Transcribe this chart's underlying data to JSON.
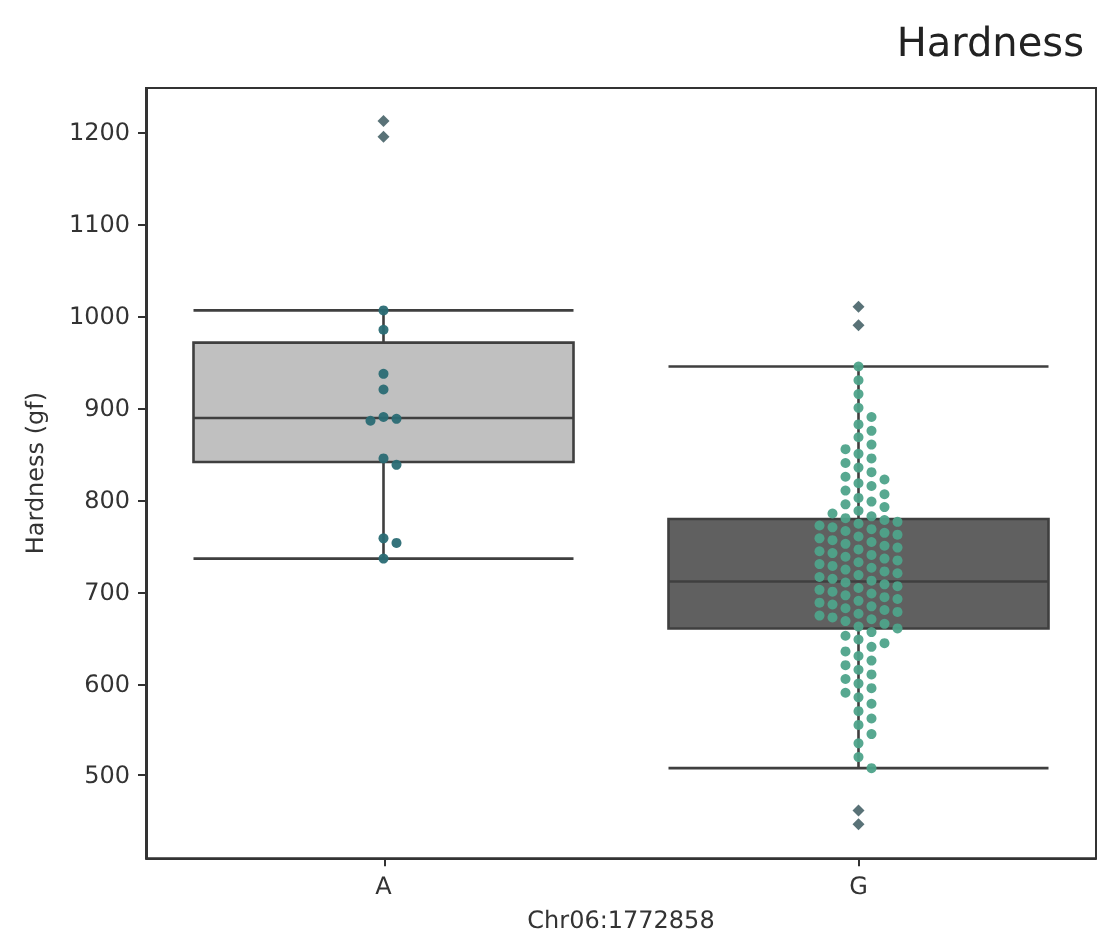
{
  "chart_data": {
    "type": "box",
    "title": "Hardness",
    "xlabel": "Chr06:1772858",
    "ylabel": "Hardness (gf)",
    "categories": [
      "A",
      "G"
    ],
    "ylim": [
      410,
      1248
    ],
    "yticks": [
      500,
      600,
      700,
      800,
      900,
      1000,
      1100,
      1200
    ],
    "grid": false,
    "series": [
      {
        "colors": [
          "#c0c0c0",
          "#606060"
        ],
        "marker": "diamond",
        "boxes": [
          {
            "low": 736,
            "q1": 841,
            "median": 889,
            "q3": 971,
            "high": 1006,
            "outliers": [
              1212,
              1195
            ]
          },
          {
            "low": 508,
            "q1": 660,
            "median": 711,
            "q3": 779,
            "high": 945,
            "outliers": [
              1010,
              990,
              462,
              447
            ]
          }
        ]
      },
      {
        "type": "scatter",
        "color": "#2a6b74",
        "marker": "circle",
        "x": [
          "A",
          "A",
          "A",
          "A",
          "A",
          "A",
          "A",
          "A",
          "A",
          "A",
          "A",
          "A"
        ],
        "values": [
          1006,
          985,
          937,
          920,
          890,
          888,
          886,
          845,
          838,
          758,
          753,
          736
        ]
      },
      {
        "type": "scatter",
        "color": "#4ea38a",
        "marker": "circle",
        "x": [
          "G",
          "G",
          "G",
          "G",
          "G",
          "G",
          "G",
          "G",
          "G",
          "G",
          "G",
          "G",
          "G",
          "G",
          "G",
          "G",
          "G",
          "G",
          "G",
          "G",
          "G",
          "G",
          "G",
          "G",
          "G",
          "G",
          "G",
          "G",
          "G",
          "G",
          "G",
          "G",
          "G",
          "G",
          "G",
          "G",
          "G",
          "G",
          "G",
          "G",
          "G",
          "G",
          "G",
          "G",
          "G",
          "G",
          "G",
          "G",
          "G",
          "G",
          "G",
          "G",
          "G",
          "G",
          "G",
          "G",
          "G",
          "G",
          "G",
          "G",
          "G",
          "G",
          "G",
          "G",
          "G",
          "G",
          "G",
          "G",
          "G",
          "G",
          "G",
          "G",
          "G",
          "G",
          "G",
          "G",
          "G",
          "G",
          "G",
          "G",
          "G",
          "G",
          "G",
          "G",
          "G",
          "G",
          "G",
          "G",
          "G",
          "G",
          "G",
          "G",
          "G",
          "G",
          "G",
          "G",
          "G",
          "G",
          "G",
          "G",
          "G",
          "G",
          "G",
          "G",
          "G",
          "G",
          "G",
          "G",
          "G",
          "G",
          "G",
          "G"
        ],
        "values": [
          945,
          930,
          915,
          900,
          890,
          882,
          875,
          868,
          860,
          855,
          850,
          845,
          840,
          835,
          830,
          825,
          822,
          818,
          815,
          810,
          806,
          802,
          798,
          795,
          792,
          788,
          785,
          782,
          780,
          778,
          776,
          774,
          772,
          770,
          768,
          766,
          764,
          762,
          760,
          758,
          756,
          754,
          752,
          750,
          748,
          746,
          744,
          742,
          740,
          738,
          736,
          734,
          732,
          730,
          728,
          726,
          724,
          722,
          720,
          718,
          716,
          714,
          712,
          710,
          708,
          706,
          704,
          702,
          700,
          698,
          696,
          694,
          692,
          690,
          688,
          686,
          684,
          682,
          680,
          678,
          676,
          674,
          672,
          670,
          668,
          665,
          662,
          660,
          656,
          652,
          648,
          644,
          640,
          635,
          630,
          625,
          620,
          615,
          610,
          605,
          600,
          595,
          590,
          585,
          578,
          570,
          562,
          555,
          545,
          535,
          520,
          508
        ]
      }
    ]
  }
}
